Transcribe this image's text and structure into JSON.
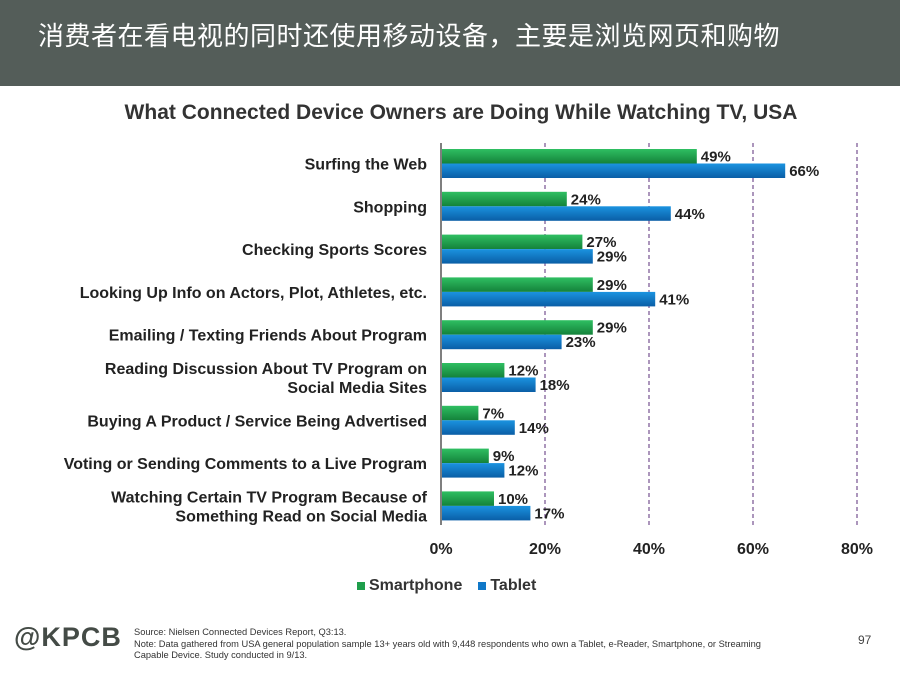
{
  "header": {
    "banner_text": "消费者在看电视的同时还使用移动设备，主要是浏览网页和购物"
  },
  "colors": {
    "banner_bg": "#545d59",
    "smartphone": "#1f9e4b",
    "tablet": "#1078c8",
    "grid": "#5a2d7a"
  },
  "chart_data": {
    "type": "bar",
    "orientation": "horizontal",
    "title": "What Connected Device Owners are Doing While Watching TV, USA",
    "categories": [
      "Surfing the Web",
      "Shopping",
      "Checking Sports Scores",
      "Looking Up Info on Actors, Plot, Athletes, etc.",
      "Emailing / Texting Friends About Program",
      "Reading Discussion About TV Program on Social Media Sites",
      "Buying A Product / Service Being Advertised",
      "Voting or Sending Comments to a Live Program",
      "Watching Certain TV Program Because of Something Read on Social Media"
    ],
    "category_lines": [
      [
        "Surfing the Web"
      ],
      [
        "Shopping"
      ],
      [
        "Checking Sports Scores"
      ],
      [
        "Looking Up Info on Actors, Plot, Athletes, etc."
      ],
      [
        "Emailing / Texting Friends About Program"
      ],
      [
        "Reading Discussion About TV Program on",
        "Social Media Sites"
      ],
      [
        "Buying A Product / Service Being Advertised"
      ],
      [
        "Voting or Sending Comments to a Live Program"
      ],
      [
        "Watching Certain TV Program Because of",
        "Something Read on Social Media"
      ]
    ],
    "series": [
      {
        "name": "Smartphone",
        "values": [
          49,
          24,
          27,
          29,
          29,
          12,
          7,
          9,
          10
        ]
      },
      {
        "name": "Tablet",
        "values": [
          66,
          44,
          29,
          41,
          23,
          18,
          14,
          12,
          17
        ]
      }
    ],
    "xlim": [
      0,
      80
    ],
    "xticks": [
      0,
      20,
      40,
      60,
      80
    ],
    "tick_suffix": "%",
    "gridlines": "dashed vertical",
    "legend_position": "bottom-center"
  },
  "legend": {
    "smartphone_label": "Smartphone",
    "tablet_label": "Tablet"
  },
  "footer": {
    "logo": "@KPCB",
    "source_line": "Source: Nielsen Connected Devices Report, Q3:13.",
    "note_line_1": "Note: Data gathered from USA general population sample 13+ years old with 9,448 respondents who own a Tablet, e-Reader, Smartphone, or Streaming",
    "note_line_2": "Capable Device. Study conducted in 9/13.",
    "page_number": "97"
  }
}
